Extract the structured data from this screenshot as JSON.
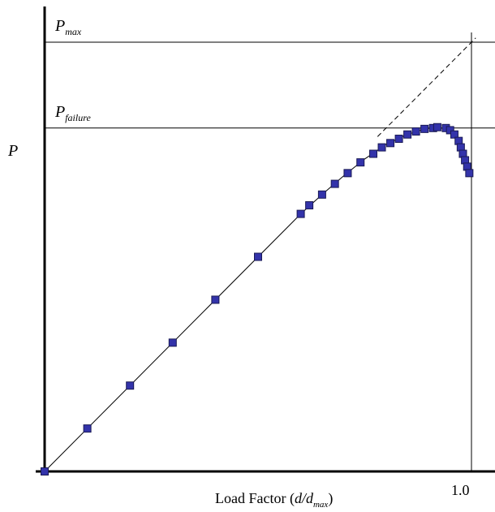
{
  "chart_data": {
    "type": "scatter",
    "xlabel_main": "Load Factor (",
    "xlabel_var": "d/d",
    "xlabel_sub": "max",
    "xlabel_close": ")",
    "ylabel": "P",
    "x_tick_label": "1.0",
    "xlim": [
      0,
      1.0
    ],
    "ylim": [
      0,
      1.0
    ],
    "reference_lines": [
      {
        "main": "P",
        "sub": "max",
        "y": 1.0
      },
      {
        "main": "P",
        "sub": "failure",
        "y": 0.8
      }
    ],
    "elastic_line_slope": 1.0,
    "series": [
      {
        "marker": "square",
        "color": "#3333aa",
        "x": [
          0.0,
          0.1,
          0.2,
          0.3,
          0.4,
          0.5,
          0.6,
          0.62,
          0.65,
          0.68,
          0.71,
          0.74,
          0.77,
          0.79,
          0.81,
          0.83,
          0.85,
          0.87,
          0.89,
          0.91,
          0.92,
          0.94,
          0.95,
          0.96,
          0.97,
          0.975,
          0.98,
          0.985,
          0.99,
          0.995
        ],
        "y": [
          0.0,
          0.1,
          0.2,
          0.3,
          0.4,
          0.5,
          0.6,
          0.62,
          0.645,
          0.67,
          0.695,
          0.72,
          0.74,
          0.755,
          0.765,
          0.775,
          0.785,
          0.792,
          0.798,
          0.8,
          0.802,
          0.8,
          0.795,
          0.785,
          0.77,
          0.755,
          0.74,
          0.725,
          0.71,
          0.695
        ]
      }
    ],
    "curve": {
      "x": [
        0.0,
        0.6,
        0.65,
        0.7,
        0.75,
        0.8,
        0.85,
        0.89,
        0.92,
        0.95,
        0.97,
        0.98,
        0.99,
        0.995
      ],
      "y": [
        0.0,
        0.6,
        0.645,
        0.688,
        0.728,
        0.762,
        0.785,
        0.798,
        0.802,
        0.795,
        0.77,
        0.748,
        0.722,
        0.695
      ]
    },
    "colors": {
      "marker_fill": "#3333aa",
      "marker_edge": "#1a1a55",
      "axis": "#000000"
    }
  }
}
